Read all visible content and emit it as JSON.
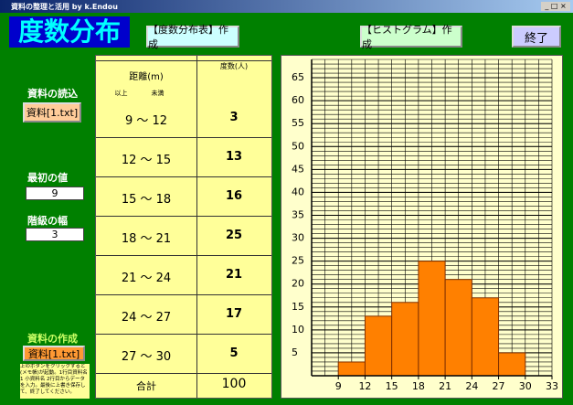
{
  "window": {
    "title": "資料の整理と活用 by k.Endou"
  },
  "header": {
    "title": "度数分布",
    "buttons": [
      "【度数分布表】作成",
      "【ヒストグラム】作成",
      "終了"
    ]
  },
  "sidebar": {
    "load_label": "資料の読込",
    "load_button": "資料[1.txt]",
    "first_label": "最初の値",
    "first_value": 9,
    "width_label": "階級の幅",
    "width_value": 3,
    "create_label": "資料の作成",
    "create_button": "資料[1.txt]",
    "note": "上のボタンをクリックすると(メモ帳)が起動。1行目資料名 1 小資料名 2行目からデータを入力。最後に上書き保存して、終了してください。"
  },
  "table": {
    "headers": [
      "距離(m)",
      "度数(人)"
    ],
    "subheaders": [
      "以上",
      "未満"
    ],
    "rows": [
      [
        "9 ～ 12",
        3
      ],
      [
        "12 ～ 15",
        13
      ],
      [
        "15 ～ 18",
        16
      ],
      [
        "18 ～ 21",
        25
      ],
      [
        "21 ～ 24",
        21
      ],
      [
        "24 ～ 27",
        17
      ],
      [
        "27 ～ 30",
        5
      ]
    ],
    "total_label": "合計",
    "total": 100
  },
  "chart_data": {
    "type": "histogram",
    "bins": [
      9,
      12,
      15,
      18,
      21,
      24,
      27,
      30
    ],
    "values": [
      3,
      13,
      16,
      25,
      21,
      17,
      5
    ],
    "color": "#ff8000",
    "xlim": [
      6,
      33
    ],
    "ylim": [
      0,
      69
    ],
    "xticks": [
      9,
      12,
      15,
      18,
      21,
      24,
      27,
      30,
      33
    ],
    "yticks": [
      5,
      10,
      15,
      20,
      25,
      30,
      35,
      40,
      45,
      50,
      55,
      60,
      65
    ],
    "grid": true
  }
}
